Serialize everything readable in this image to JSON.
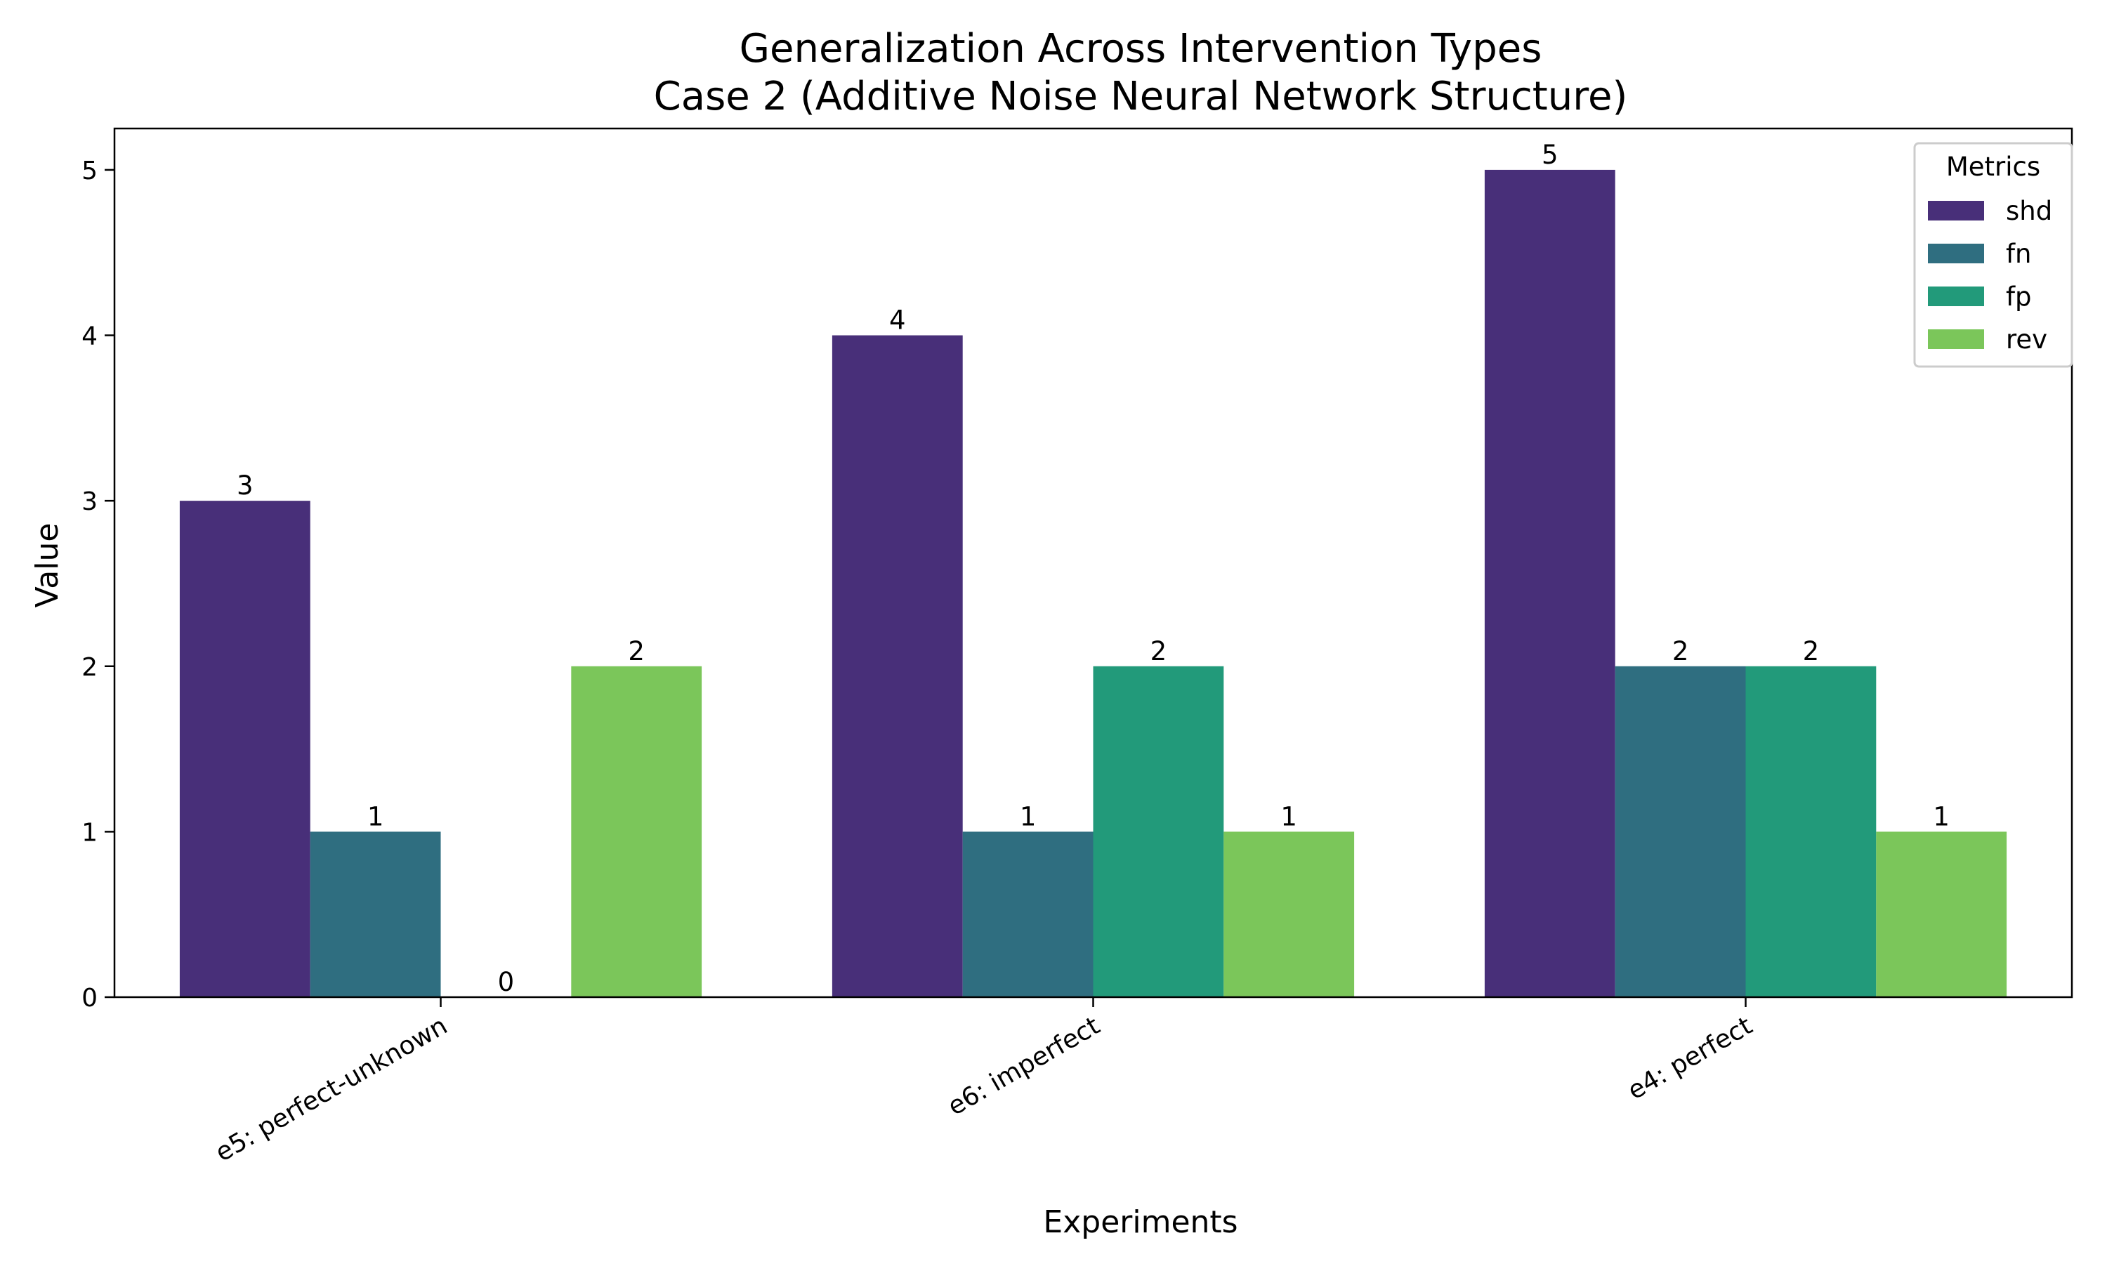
{
  "chart_data": {
    "type": "bar",
    "title_line1": "Generalization Across Intervention Types",
    "title_line2": "Case 2 (Additive Noise Neural Network Structure)",
    "xlabel": "Experiments",
    "ylabel": "Value",
    "categories": [
      "e5: perfect-unknown",
      "e6: imperfect",
      "e4: perfect"
    ],
    "series": [
      {
        "name": "shd",
        "color": "#482f79",
        "values": [
          3,
          4,
          5
        ]
      },
      {
        "name": "fn",
        "color": "#2f6e80",
        "values": [
          1,
          1,
          2
        ]
      },
      {
        "name": "fp",
        "color": "#229a7a",
        "values": [
          0,
          2,
          2
        ]
      },
      {
        "name": "rev",
        "color": "#7bc65a",
        "values": [
          2,
          1,
          1
        ]
      }
    ],
    "yticks": [
      0,
      1,
      2,
      3,
      4,
      5
    ],
    "ylim": [
      0,
      5.25
    ],
    "legend_title": "Metrics",
    "legend_position": "top-right",
    "grid": false
  }
}
